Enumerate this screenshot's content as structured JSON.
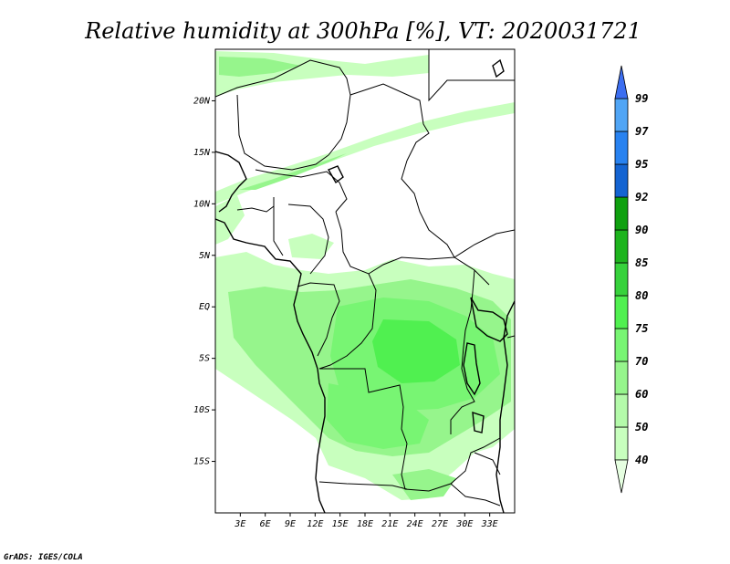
{
  "title": "Relative humidity at 300hPa [%], VT: 2020031721",
  "credit": "GrADS: IGES/COLA",
  "map": {
    "lon_range": [
      0,
      36
    ],
    "lat_range": [
      -20,
      25
    ],
    "lon_ticks": [
      "3E",
      "6E",
      "9E",
      "12E",
      "15E",
      "18E",
      "21E",
      "24E",
      "27E",
      "30E",
      "33E"
    ],
    "lat_ticks": [
      "20N",
      "15N",
      "10N",
      "5N",
      "EQ",
      "5S",
      "10S",
      "15S"
    ]
  },
  "legend": {
    "levels": [
      "40",
      "50",
      "60",
      "70",
      "75",
      "80",
      "85",
      "90",
      "92",
      "95",
      "97",
      "99"
    ],
    "colors": [
      "#e6ffe1",
      "#c8ffbe",
      "#b4faaa",
      "#96f58c",
      "#78f573",
      "#50f050",
      "#37d23c",
      "#1eb41e",
      "#0fa00f",
      "#1464d2",
      "#2882f0",
      "#50a5f5",
      "#3c6ef0"
    ]
  }
}
